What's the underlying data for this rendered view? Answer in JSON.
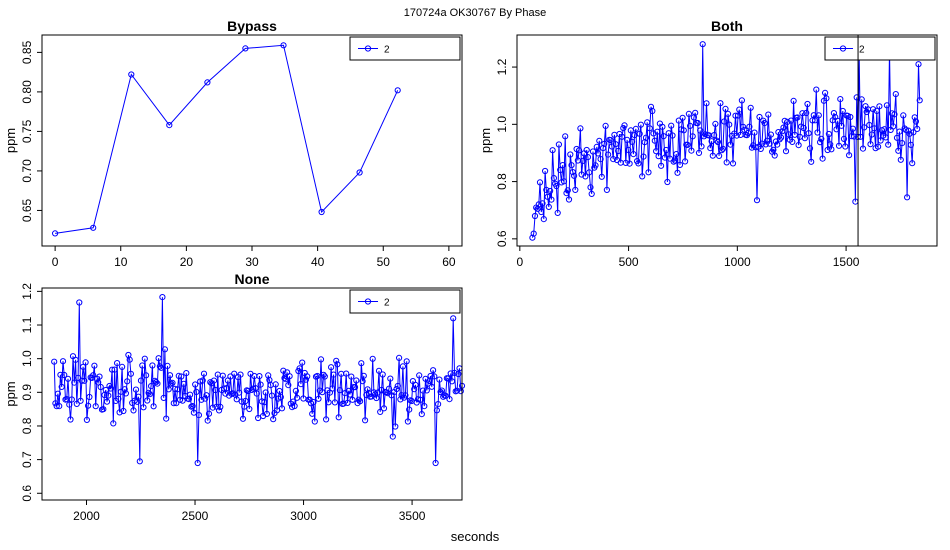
{
  "figure": {
    "suptitle": "170724a    OK30767   By Phase",
    "xlabel": "seconds"
  },
  "chart_data": [
    {
      "type": "line",
      "title": "Bypass",
      "ylabel": "ppm",
      "xlim": [
        -2,
        62
      ],
      "ylim": [
        0.605,
        0.872
      ],
      "xticks": [
        0,
        10,
        20,
        30,
        40,
        50,
        60
      ],
      "yticks": [
        0.65,
        0.7,
        0.75,
        0.8,
        0.85
      ],
      "series": [
        {
          "name": "2",
          "color": "#0000ff",
          "x": [
            0,
            5.8,
            11.6,
            17.4,
            23.2,
            29.0,
            34.8,
            40.6,
            46.4,
            52.2
          ],
          "y": [
            0.621,
            0.628,
            0.822,
            0.758,
            0.812,
            0.855,
            0.859,
            0.648,
            0.698,
            0.802
          ]
        }
      ]
    },
    {
      "type": "line",
      "title": "Both",
      "ylabel": "ppm",
      "xlim": [
        -13,
        1918
      ],
      "ylim": [
        0.575,
        1.312
      ],
      "xticks": [
        0,
        500,
        1000,
        1500
      ],
      "yticks": [
        0.6,
        0.8,
        1.0,
        1.2
      ],
      "series": [
        {
          "name": "2",
          "color": "#0000ff",
          "x_start": 58,
          "x_step": 5.8,
          "count": 308,
          "mean": [
            [
              58,
              0.64
            ],
            [
              150,
              0.79
            ],
            [
              300,
              0.87
            ],
            [
              500,
              0.93
            ],
            [
              800,
              0.97
            ],
            [
              1200,
              0.98
            ],
            [
              1600,
              0.99
            ],
            [
              1845,
              0.99
            ]
          ],
          "spread": 0.11,
          "extremes": [
            [
              58,
              0.604
            ],
            [
              841,
              1.28
            ],
            [
              1560,
              1.235
            ],
            [
              1700,
              1.26
            ],
            [
              1832,
              1.21
            ],
            [
              1780,
              0.745
            ],
            [
              1092,
              0.735
            ],
            [
              1545,
              0.73
            ]
          ],
          "y_min": 0.6,
          "y_max": 1.28
        }
      ]
    },
    {
      "type": "line",
      "title": "None",
      "ylabel": "ppm",
      "xlim": [
        1795,
        3730
      ],
      "ylim": [
        0.58,
        1.21
      ],
      "xticks": [
        2000,
        2500,
        3000,
        3500
      ],
      "yticks": [
        0.6,
        0.7,
        0.8,
        0.9,
        1.0,
        1.1,
        1.2
      ],
      "series": [
        {
          "name": "2",
          "color": "#0000ff",
          "x_start": 1851,
          "x_step": 5.8,
          "count": 325,
          "mean": [
            [
              1851,
              0.93
            ],
            [
              2200,
              0.92
            ],
            [
              2600,
              0.9
            ],
            [
              3000,
              0.9
            ],
            [
              3400,
              0.89
            ],
            [
              3735,
              0.92
            ]
          ],
          "spread": 0.085,
          "extremes": [
            [
              1965,
              1.167
            ],
            [
              2352,
              1.183
            ],
            [
              2247,
              0.695
            ],
            [
              2515,
              0.69
            ],
            [
              3607,
              0.69
            ],
            [
              3690,
              1.12
            ]
          ],
          "y_min": 0.69,
          "y_max": 1.183
        }
      ]
    }
  ]
}
